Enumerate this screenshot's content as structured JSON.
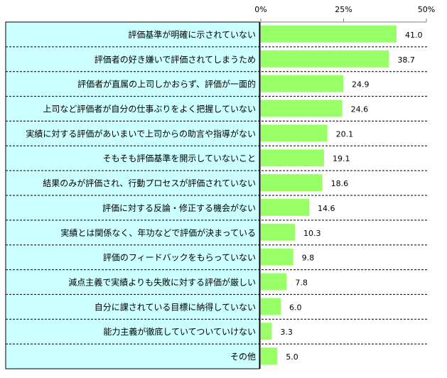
{
  "chart_data": {
    "type": "bar",
    "orientation": "horizontal",
    "title": "",
    "xlabel": "",
    "ylabel": "",
    "xlim": [
      0,
      50
    ],
    "ticks": [
      0,
      25,
      50
    ],
    "tick_labels": [
      "0%",
      "25%",
      "50%"
    ],
    "categories": [
      "評価基準が明確に示されていない",
      "評価者の好き嫌いで評価されてしまうため",
      "評価者が直属の上司しかおらず、評価が一面的",
      "上司など評価者が自分の仕事ぶりをよく把握していない",
      "実績に対する評価があいまいで上司からの助言や指導がない",
      "そもそも評価基準を開示していないこと",
      "結果のみが評価され、行動プロセスが評価されていない",
      "評価に対する反論・修正する機会がない",
      "実績とは関係なく、年功などで評価が決まっている",
      "評価のフィードバックをもらっていない",
      "減点主義で実績よりも失敗に対する評価が厳しい",
      "自分に課されている目標に納得していない",
      "能力主義が徹底していてついていけない",
      "その他"
    ],
    "values": [
      41.0,
      38.7,
      24.9,
      24.6,
      20.1,
      19.1,
      18.6,
      14.6,
      10.3,
      9.8,
      7.8,
      6.0,
      3.3,
      5.0
    ],
    "value_labels": [
      "41.0",
      "38.7",
      "24.9",
      "24.6",
      "20.1",
      "19.1",
      "18.6",
      "14.6",
      "10.3",
      "9.8",
      "7.8",
      "6.0",
      "3.3",
      "5.0"
    ],
    "grid": false,
    "legend": "none",
    "colors": {
      "bar": "#99ff66",
      "label_panel": "#ccffff",
      "axis": "#808080"
    }
  }
}
